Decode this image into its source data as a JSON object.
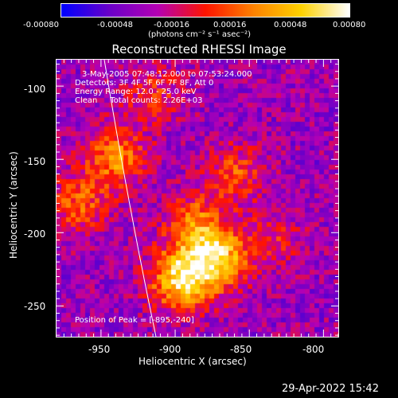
{
  "colorbar": {
    "ticks": [
      "-0.00080",
      "-0.00048",
      "-0.00016",
      "0.00016",
      "0.00048",
      "0.00080"
    ],
    "units": "(photons cm⁻² s⁻¹ asec⁻²)",
    "colors": [
      "#0000ff",
      "#6a00c8",
      "#b400b4",
      "#ff1400",
      "#ff8200",
      "#ffd200",
      "#ffffff"
    ]
  },
  "chart_data": {
    "type": "heatmap",
    "title": "Reconstructed RHESSI Image",
    "xlabel": "Heliocentric X (arcsec)",
    "ylabel": "Heliocentric Y (arcsec)",
    "xlim": [
      -980,
      -790
    ],
    "ylim": [
      -271,
      -82
    ],
    "xticks": [
      -950,
      -900,
      -850,
      -800
    ],
    "yticks": [
      -100,
      -150,
      -200,
      -250
    ],
    "value_range": [
      -0.0008,
      0.0008
    ],
    "peak": [
      -895,
      -240
    ],
    "sources": [
      {
        "x": -896,
        "y": -232,
        "strength": 1.0
      },
      {
        "x": -872,
        "y": -218,
        "strength": 0.9
      },
      {
        "x": -887,
        "y": -195,
        "strength": 0.6
      },
      {
        "x": -940,
        "y": -148,
        "strength": 0.65
      },
      {
        "x": -965,
        "y": -180,
        "strength": 0.5
      },
      {
        "x": -860,
        "y": -160,
        "strength": 0.45
      },
      {
        "x": -915,
        "y": -105,
        "strength": 0.35
      },
      {
        "x": -835,
        "y": -205,
        "strength": 0.3
      }
    ],
    "annotations": [
      "3-May-2005 07:48:12.000 to 07:53:24.000",
      "Detectors: 3F 4F 5F 6F 7F 8F, Att 0",
      "Energy Range: 12.0 - 25.0 keV",
      "Clean     Total counts: 2.26E+03"
    ],
    "peak_label": "Position of Peak = [-895,-240]"
  },
  "footer": {
    "timestamp": "29-Apr-2022 15:42"
  }
}
